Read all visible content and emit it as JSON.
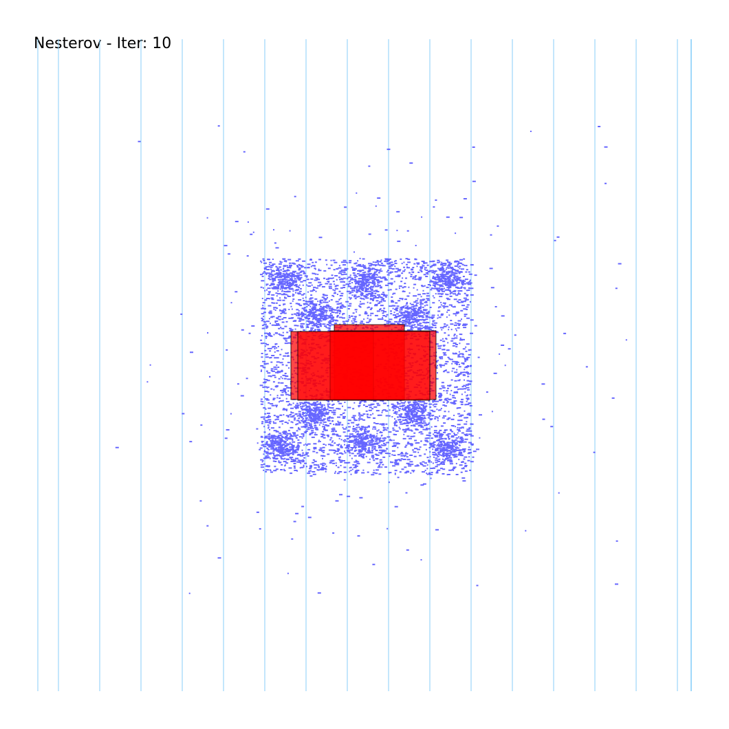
{
  "title": "Nesterov - Iter: 10",
  "colors": {
    "background": "#ffffff",
    "row_line": "#87cefa",
    "cell": "#4b4bff",
    "macro_fill": "#ff0000",
    "macro_outline": "#000000"
  }
}
